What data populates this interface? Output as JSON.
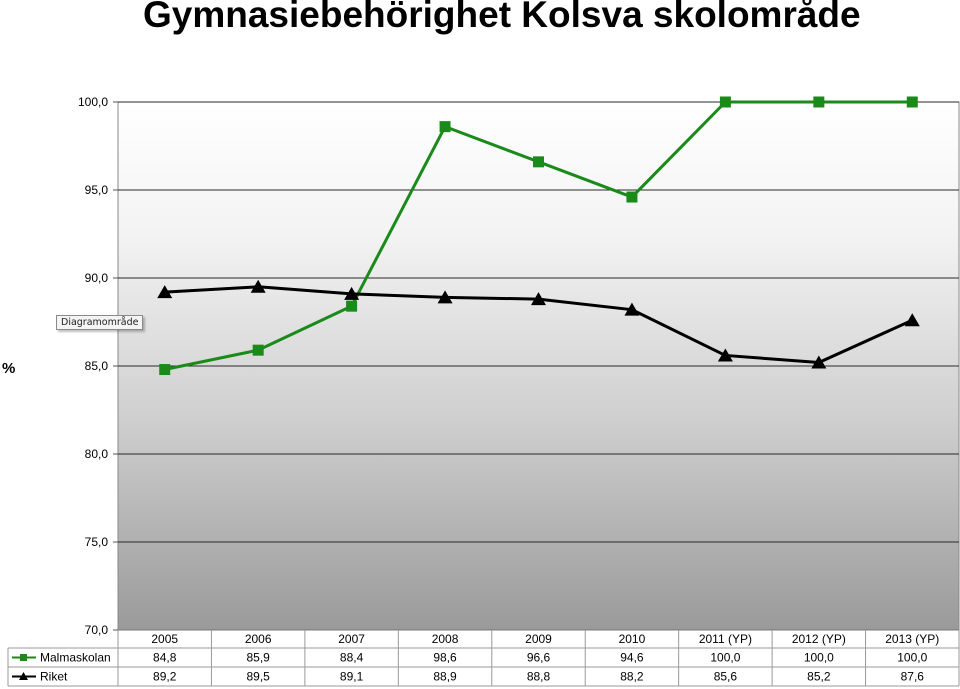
{
  "page": {
    "title": "Gymnasiebehörighet Kolsva skolområde"
  },
  "tooltip": {
    "text": "Diagramområde"
  },
  "chart_data": {
    "type": "line",
    "title": "Gymnasiebehörighet Kolsva skolområde",
    "ylabel": "%",
    "xlabel": "",
    "ylim": [
      70,
      100
    ],
    "yticks": [
      "70,0",
      "75,0",
      "80,0",
      "85,0",
      "90,0",
      "95,0",
      "100,0"
    ],
    "categories": [
      "2005",
      "2006",
      "2007",
      "2008",
      "2009",
      "2010",
      "2011 (YP)",
      "2012 (YP)",
      "2013 (YP)"
    ],
    "grid": true,
    "legend": "data-table-bottom",
    "series": [
      {
        "name": "Malmaskolan",
        "color": "#1a8a1a",
        "marker": "square",
        "values": [
          84.8,
          85.9,
          88.4,
          98.6,
          96.6,
          94.6,
          100.0,
          100.0,
          100.0
        ],
        "labels": [
          "84,8",
          "85,9",
          "88,4",
          "98,6",
          "96,6",
          "94,6",
          "100,0",
          "100,0",
          "100,0"
        ]
      },
      {
        "name": "Riket",
        "color": "#000000",
        "marker": "triangle",
        "values": [
          89.2,
          89.5,
          89.1,
          88.9,
          88.8,
          88.2,
          85.6,
          85.2,
          87.6
        ],
        "labels": [
          "89,2",
          "89,5",
          "89,1",
          "88,9",
          "88,8",
          "88,2",
          "85,6",
          "85,2",
          "87,6"
        ]
      }
    ]
  }
}
